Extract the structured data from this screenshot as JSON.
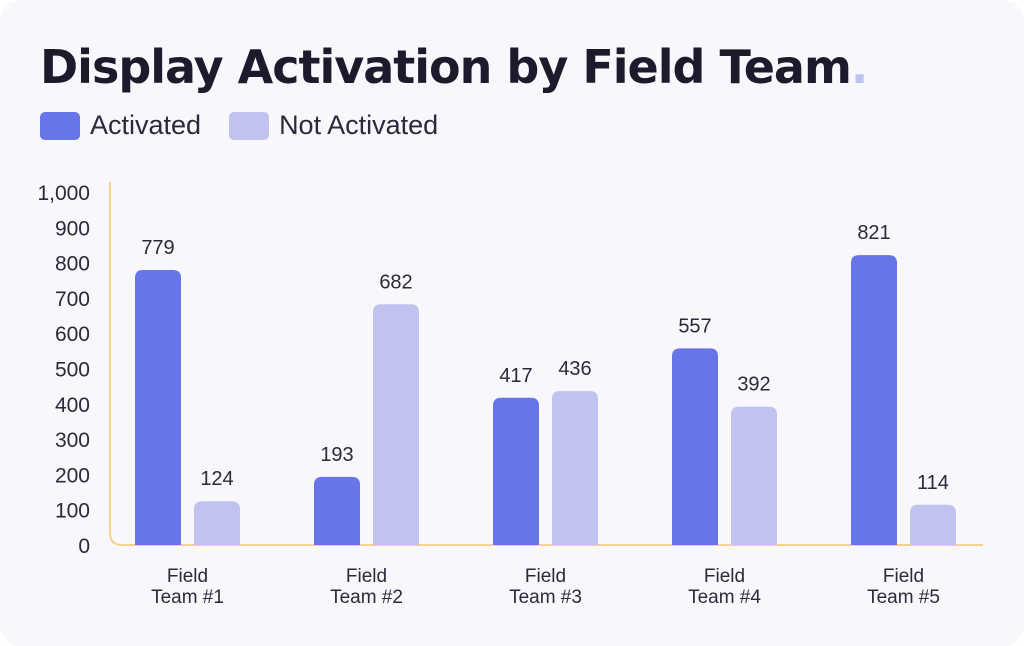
{
  "title": "Display Activation by Field Team",
  "title_dot": ".",
  "colors": {
    "activated": "#6875e8",
    "not_activated": "#c0c2f0",
    "axis": "#f7d28a",
    "title": "#1b1b2c",
    "text": "#2a2a3c"
  },
  "chart_data": {
    "type": "bar",
    "title": "Display Activation by Field Team",
    "categories": [
      [
        "Field",
        "Team #1"
      ],
      [
        "Field",
        "Team #2"
      ],
      [
        "Field",
        "Team #3"
      ],
      [
        "Field",
        "Team #4"
      ],
      [
        "Field",
        "Team #5"
      ]
    ],
    "series": [
      {
        "name": "Activated",
        "values": [
          779,
          193,
          417,
          557,
          821
        ]
      },
      {
        "name": "Not Activated",
        "values": [
          124,
          682,
          436,
          392,
          114
        ]
      }
    ],
    "ylim": [
      0,
      1000
    ],
    "yticks": [
      0,
      100,
      200,
      300,
      400,
      500,
      600,
      700,
      800,
      900,
      1000
    ],
    "ytick_labels": [
      "0",
      "100",
      "200",
      "300",
      "400",
      "500",
      "600",
      "700",
      "800",
      "900",
      "1,000"
    ],
    "xlabel": "",
    "ylabel": "",
    "legend": "top-left",
    "grid": false
  }
}
